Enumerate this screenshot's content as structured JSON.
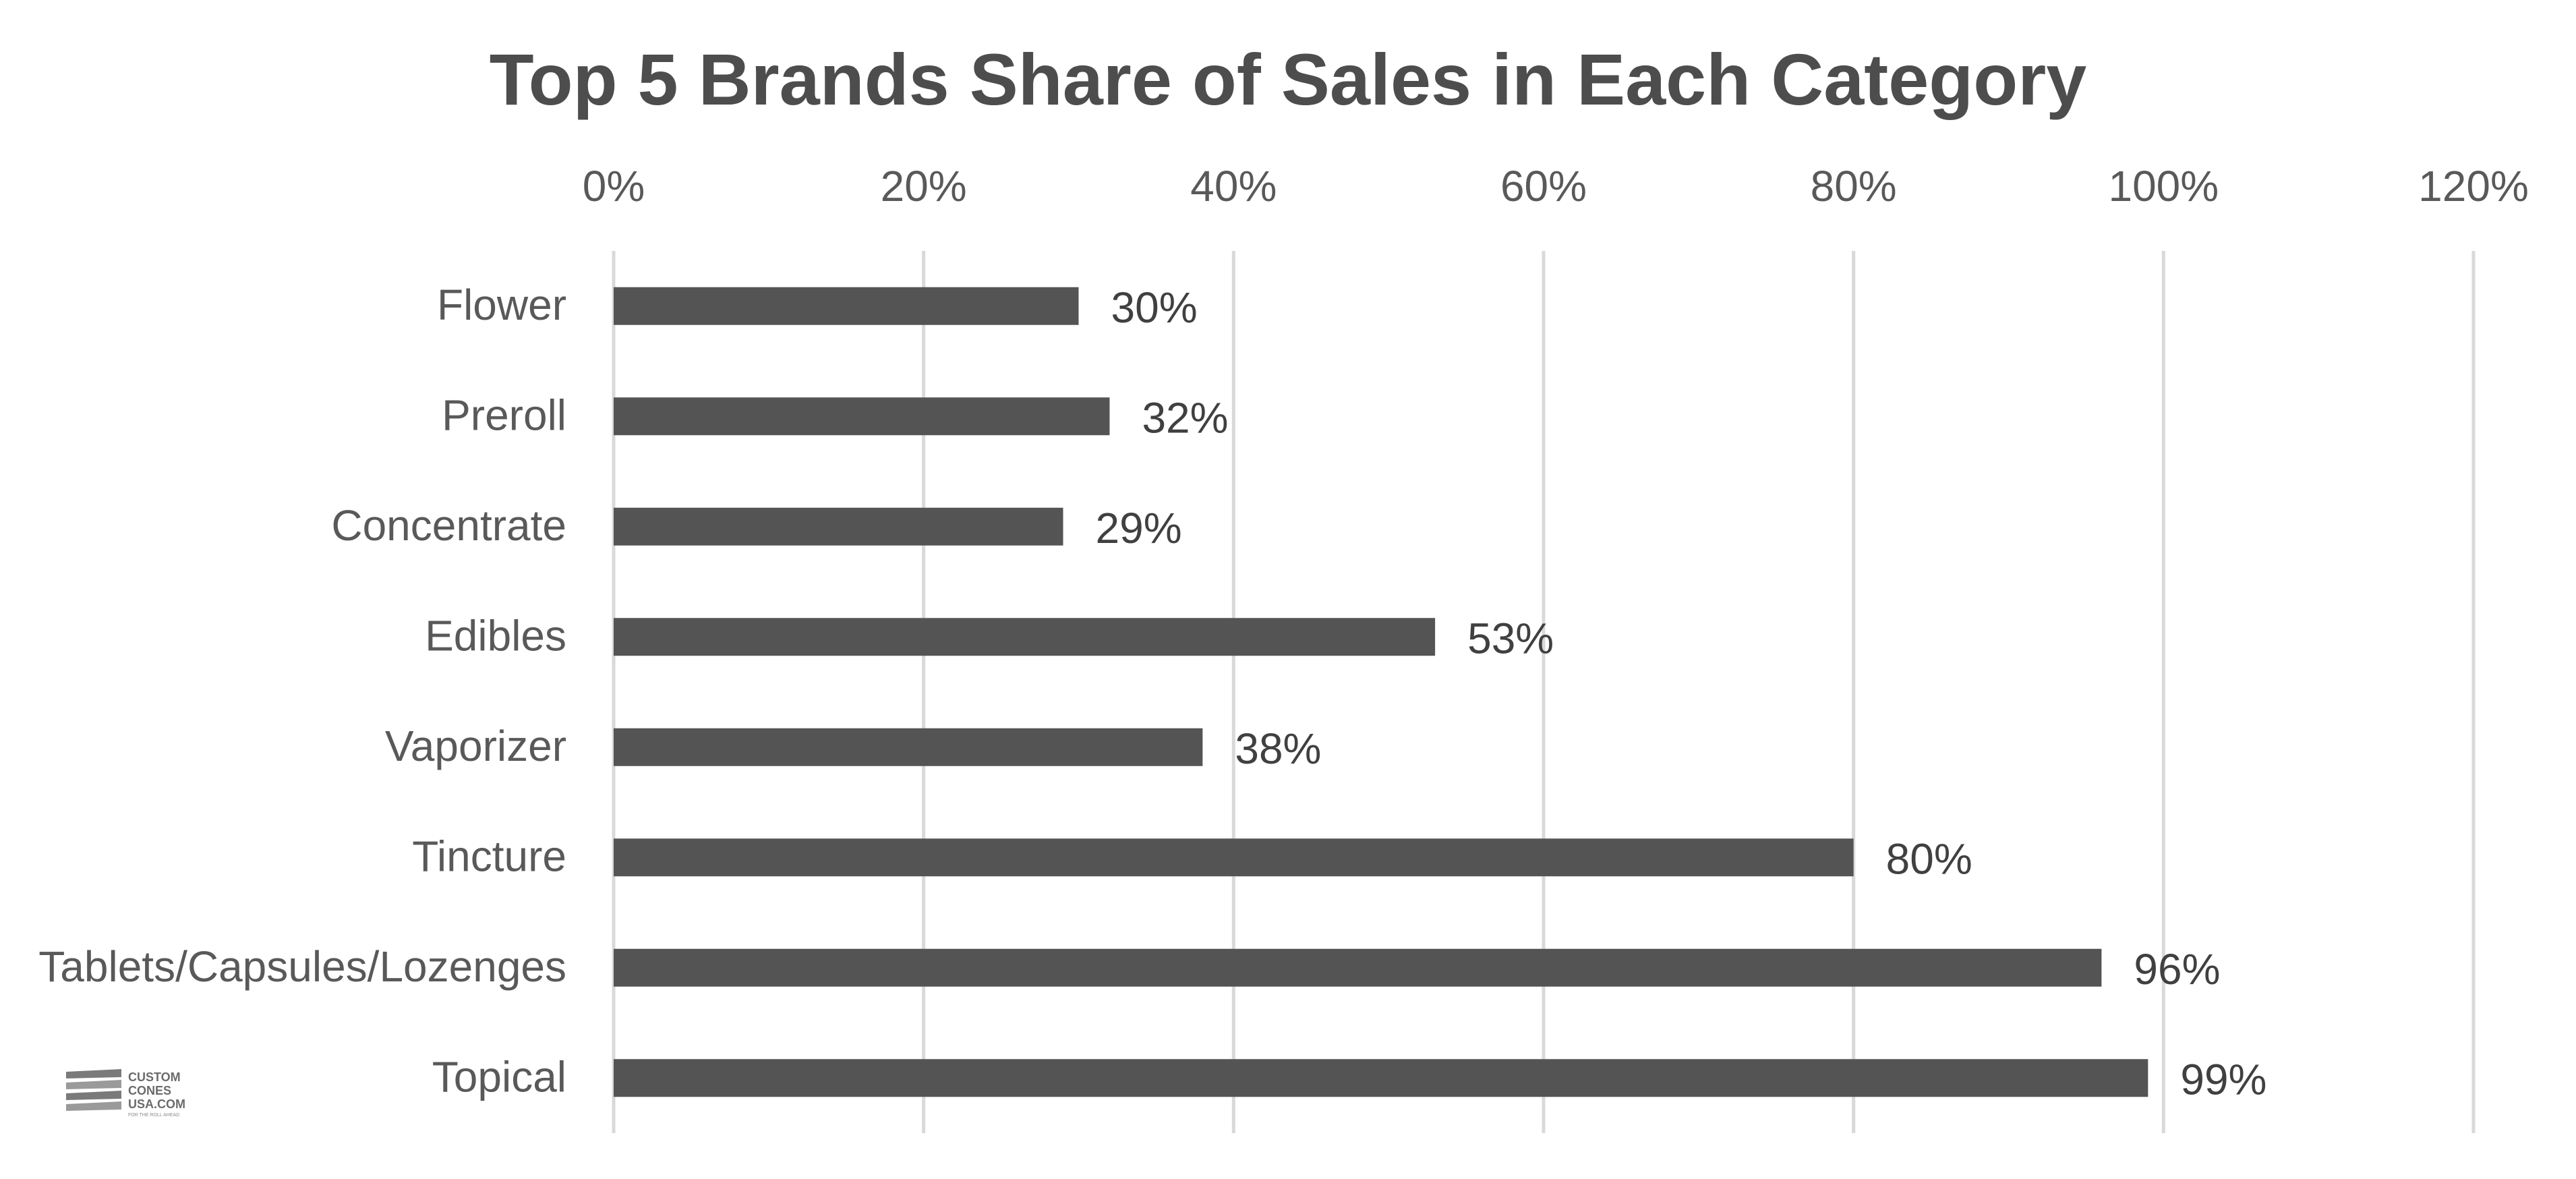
{
  "chart_data": {
    "type": "bar",
    "orientation": "horizontal",
    "title": "Top 5 Brands Share of Sales in Each Category",
    "categories": [
      "Flower",
      "Preroll",
      "Concentrate",
      "Edibles",
      "Vaporizer",
      "Tincture",
      "Tablets/Capsules/Lozenges",
      "Topical"
    ],
    "values": [
      30,
      32,
      29,
      53,
      38,
      80,
      96,
      99
    ],
    "data_labels": [
      "30%",
      "32%",
      "29%",
      "53%",
      "38%",
      "80%",
      "96%",
      "99%"
    ],
    "xlim": [
      0,
      120
    ],
    "x_ticks": [
      0,
      20,
      40,
      60,
      80,
      100,
      120
    ],
    "x_tick_labels": [
      "0%",
      "20%",
      "40%",
      "60%",
      "80%",
      "100%",
      "120%"
    ],
    "x_axis_position": "top",
    "grid": true,
    "legend": "none",
    "bar_color": "#545454",
    "grid_color": "#d9d9d9"
  },
  "logo": {
    "lines": [
      "CUSTOM",
      "CONES",
      "USA.COM"
    ],
    "tagline": "FOR THE ROLL AHEAD"
  }
}
